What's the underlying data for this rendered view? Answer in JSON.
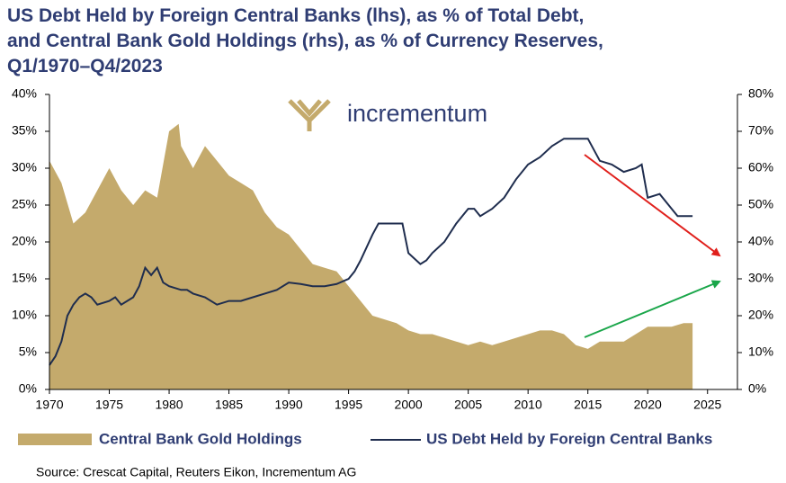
{
  "chart_data": {
    "type": "area-line",
    "title": [
      "US Debt Held by Foreign Central Banks (lhs), as % of Total Debt,",
      "and Central Bank Gold Holdings (rhs), as % of Currency Reserves,",
      "Q1/1970–Q4/2023"
    ],
    "annotations": [
      "incrementum"
    ],
    "source": "Source: Crescat Capital, Reuters Eikon, Incrementum AG",
    "xlim": [
      1970,
      2027.5
    ],
    "xticks": [
      1970,
      1975,
      1980,
      1985,
      1990,
      1995,
      2000,
      2005,
      2010,
      2015,
      2020,
      2025
    ],
    "ylim": [
      0,
      40
    ],
    "yticks": [
      {
        "value": 0,
        "label": "0%"
      },
      {
        "value": 5,
        "label": "5%"
      },
      {
        "value": 10,
        "label": "10%"
      },
      {
        "value": 15,
        "label": "15%"
      },
      {
        "value": 20,
        "label": "20%"
      },
      {
        "value": 25,
        "label": "25%"
      },
      {
        "value": 30,
        "label": "30%"
      },
      {
        "value": 35,
        "label": "35%"
      },
      {
        "value": 40,
        "label": "40%"
      }
    ],
    "y2lim": [
      0,
      80
    ],
    "y2ticks": [
      {
        "value": 0,
        "label": "0%"
      },
      {
        "value": 10,
        "label": "10%"
      },
      {
        "value": 20,
        "label": "20%"
      },
      {
        "value": 30,
        "label": "30%"
      },
      {
        "value": 40,
        "label": "40%"
      },
      {
        "value": 50,
        "label": "50%"
      },
      {
        "value": 60,
        "label": "60%"
      },
      {
        "value": 70,
        "label": "70%"
      },
      {
        "value": 80,
        "label": "80%"
      }
    ],
    "series": [
      {
        "name": "Central Bank Gold Holdings",
        "kind": "area",
        "axis": "y2",
        "color": "#c4aa6c",
        "x": [
          1970,
          1971,
          1972,
          1973,
          1974,
          1975,
          1976,
          1977,
          1978,
          1979,
          1980,
          1980.8,
          1981,
          1982,
          1983,
          1984,
          1985,
          1986,
          1987,
          1988,
          1989,
          1990,
          1991,
          1992,
          1993,
          1994,
          1995,
          1996,
          1997,
          1998,
          1999,
          2000,
          2001,
          2002,
          2003,
          2004,
          2005,
          2006,
          2007,
          2008,
          2009,
          2010,
          2011,
          2012,
          2013,
          2014,
          2015,
          2016,
          2017,
          2018,
          2019,
          2020,
          2021,
          2022,
          2023,
          2023.75
        ],
        "values": [
          62,
          56,
          45,
          48,
          54,
          60,
          54,
          50,
          54,
          52,
          70,
          72,
          66,
          60,
          66,
          62,
          58,
          56,
          54,
          48,
          44,
          42,
          38,
          34,
          33,
          32,
          28,
          24,
          20,
          19,
          18,
          16,
          15,
          15,
          14,
          13,
          12,
          13,
          12,
          13,
          14,
          15,
          16,
          16,
          15,
          12,
          11,
          13,
          13,
          13,
          15,
          17,
          17,
          17,
          18,
          18
        ]
      },
      {
        "name": "US Debt Held by Foreign Central Banks",
        "kind": "line",
        "axis": "y",
        "color": "#1f2d4e",
        "x": [
          1970,
          1970.5,
          1971,
          1971.5,
          1972,
          1972.5,
          1973,
          1973.5,
          1974,
          1975,
          1975.5,
          1976,
          1977,
          1977.5,
          1978,
          1978.5,
          1979,
          1979.5,
          1980,
          1981,
          1981.5,
          1982,
          1983,
          1984,
          1985,
          1986,
          1987,
          1988,
          1989,
          1990,
          1991,
          1992,
          1993,
          1994,
          1995,
          1995.5,
          1996,
          1997,
          1997.5,
          1998,
          1999,
          1999.5,
          2000,
          2001,
          2001.5,
          2002,
          2003,
          2004,
          2005,
          2005.5,
          2006,
          2007,
          2008,
          2009,
          2010,
          2011,
          2012,
          2013,
          2014,
          2015,
          2016,
          2017,
          2018,
          2019,
          2019.5,
          2020,
          2021,
          2022,
          2022.5,
          2023,
          2023.75
        ],
        "values": [
          3.3,
          4.5,
          6.5,
          10,
          11.5,
          12.5,
          13,
          12.5,
          11.5,
          12,
          12.5,
          11.5,
          12.5,
          14,
          16.5,
          15.5,
          16.5,
          14.5,
          14,
          13.5,
          13.5,
          13,
          12.5,
          11.5,
          12,
          12,
          12.5,
          13,
          13.5,
          14.5,
          14.3,
          14,
          14,
          14.3,
          15,
          16,
          17.5,
          21,
          22.5,
          22.5,
          22.5,
          22.5,
          18.5,
          17,
          17.5,
          18.5,
          20,
          22.5,
          24.5,
          24.5,
          23.5,
          24.5,
          26,
          28.5,
          30.5,
          31.5,
          33,
          34,
          34,
          34,
          31,
          30.5,
          29.5,
          30,
          30.5,
          26,
          26.5,
          24.5,
          23.5,
          23.5,
          23.5
        ]
      }
    ]
  }
}
